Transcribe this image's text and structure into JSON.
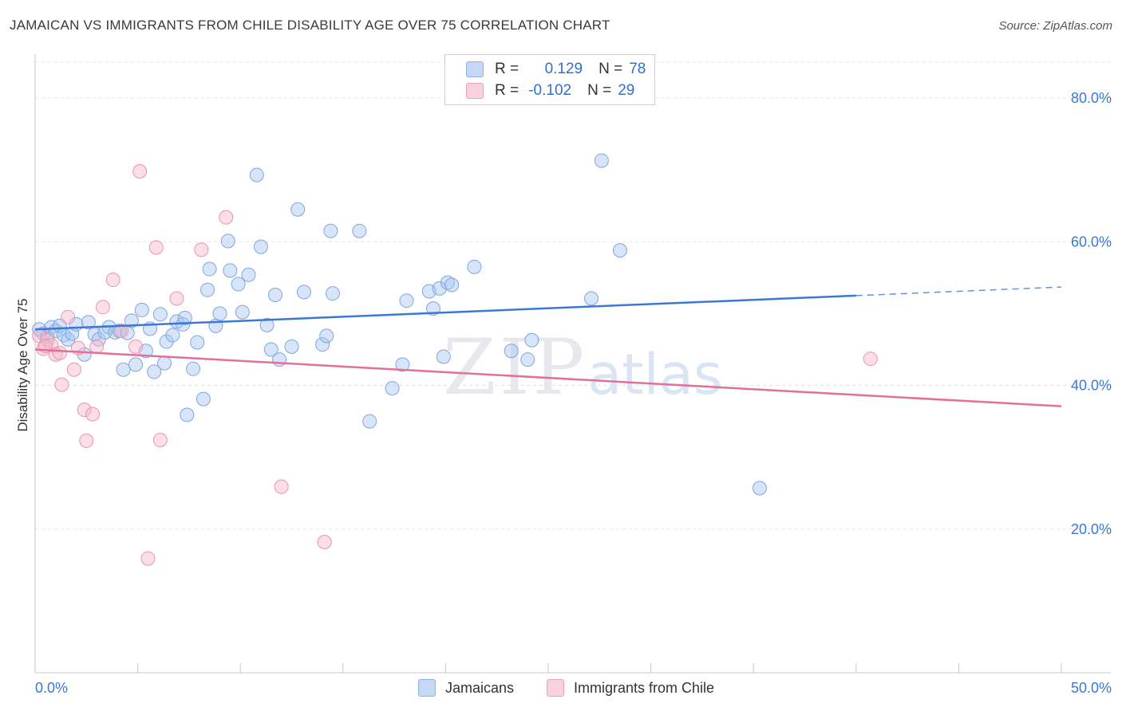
{
  "header": {
    "title": "JAMAICAN VS IMMIGRANTS FROM CHILE DISABILITY AGE OVER 75 CORRELATION CHART",
    "source": "Source: ZipAtlas.com"
  },
  "watermark": {
    "zip": "ZIP",
    "atlas": "atlas"
  },
  "legend": {
    "rows": [
      {
        "r_label": "R =",
        "r_value": "0.129",
        "n_label": "N =",
        "n_value": "78",
        "color": "#a9c6ef"
      },
      {
        "r_label": "R =",
        "r_value": "-0.102",
        "n_label": "N =",
        "n_value": "29",
        "color": "#f5b8cb"
      }
    ]
  },
  "bottom_legend": {
    "jamaicans": "Jamaicans",
    "chile": "Immigrants from Chile"
  },
  "chart_data": {
    "type": "scatter",
    "title": "JAMAICAN VS IMMIGRANTS FROM CHILE DISABILITY AGE OVER 75 CORRELATION CHART",
    "xlabel": "",
    "ylabel": "Disability Age Over 75",
    "xlim": [
      0,
      50
    ],
    "ylim": [
      0,
      85
    ],
    "x_tick_labels": [
      "0.0%",
      "50.0%"
    ],
    "y_ticks": [
      20,
      40,
      60,
      80
    ],
    "y_tick_labels": [
      "20.0%",
      "40.0%",
      "60.0%",
      "80.0%"
    ],
    "grid": true,
    "legend_position": "top-center",
    "colors": {
      "jamaicans": "#3a78d4",
      "chile": "#e46f97",
      "tick_label": "#3a78d4"
    },
    "series": [
      {
        "name": "Jamaicans",
        "trend": {
          "x0": 0,
          "y0": 47.8,
          "x1": 40,
          "y1": 52.5,
          "dashed_to_x": 50,
          "dashed_to_y": 53.7
        },
        "points": [
          [
            0.2,
            47.8
          ],
          [
            0.4,
            47.2
          ],
          [
            0.6,
            46.8
          ],
          [
            0.8,
            48.1
          ],
          [
            1.0,
            47.6
          ],
          [
            1.2,
            48.3
          ],
          [
            1.4,
            47.0
          ],
          [
            1.6,
            46.4
          ],
          [
            1.8,
            47.2
          ],
          [
            2.0,
            48.5
          ],
          [
            2.4,
            44.3
          ],
          [
            2.6,
            48.8
          ],
          [
            2.9,
            47.1
          ],
          [
            3.1,
            46.4
          ],
          [
            3.4,
            47.4
          ],
          [
            3.6,
            48.1
          ],
          [
            3.9,
            47.4
          ],
          [
            4.1,
            47.6
          ],
          [
            4.3,
            42.2
          ],
          [
            4.5,
            47.3
          ],
          [
            4.7,
            49.0
          ],
          [
            4.9,
            42.9
          ],
          [
            5.2,
            50.5
          ],
          [
            5.4,
            44.8
          ],
          [
            5.6,
            47.9
          ],
          [
            5.8,
            41.9
          ],
          [
            6.1,
            49.9
          ],
          [
            6.3,
            43.1
          ],
          [
            6.4,
            46.1
          ],
          [
            6.7,
            47.0
          ],
          [
            6.9,
            48.9
          ],
          [
            7.2,
            48.5
          ],
          [
            7.3,
            49.4
          ],
          [
            7.7,
            42.3
          ],
          [
            7.9,
            46.0
          ],
          [
            8.2,
            38.1
          ],
          [
            8.4,
            53.3
          ],
          [
            8.5,
            56.2
          ],
          [
            8.8,
            48.3
          ],
          [
            9.0,
            50.0
          ],
          [
            9.4,
            60.1
          ],
          [
            9.5,
            56.0
          ],
          [
            9.9,
            54.1
          ],
          [
            10.1,
            50.2
          ],
          [
            10.4,
            55.4
          ],
          [
            10.8,
            69.3
          ],
          [
            11.0,
            59.3
          ],
          [
            11.3,
            48.4
          ],
          [
            11.5,
            45.0
          ],
          [
            11.7,
            52.6
          ],
          [
            11.9,
            43.6
          ],
          [
            12.5,
            45.4
          ],
          [
            12.8,
            64.5
          ],
          [
            13.1,
            53.0
          ],
          [
            14.0,
            45.7
          ],
          [
            14.2,
            46.9
          ],
          [
            14.4,
            61.5
          ],
          [
            14.5,
            52.8
          ],
          [
            15.8,
            61.5
          ],
          [
            16.3,
            35.0
          ],
          [
            17.4,
            39.6
          ],
          [
            17.9,
            42.9
          ],
          [
            18.1,
            51.8
          ],
          [
            19.2,
            53.1
          ],
          [
            19.4,
            50.7
          ],
          [
            19.7,
            53.5
          ],
          [
            19.9,
            44.0
          ],
          [
            20.1,
            54.3
          ],
          [
            20.3,
            54.0
          ],
          [
            21.4,
            56.5
          ],
          [
            23.2,
            44.8
          ],
          [
            24.0,
            43.6
          ],
          [
            24.2,
            46.3
          ],
          [
            27.1,
            52.1
          ],
          [
            27.6,
            71.3
          ],
          [
            28.5,
            58.8
          ],
          [
            35.3,
            25.7
          ],
          [
            7.4,
            35.9
          ]
        ]
      },
      {
        "name": "Immigrants from Chile",
        "trend": {
          "x0": 0,
          "y0": 45.0,
          "x1": 50,
          "y1": 37.1
        },
        "points": [
          [
            0.2,
            46.9
          ],
          [
            0.4,
            45.1
          ],
          [
            0.6,
            46.3
          ],
          [
            0.8,
            45.6
          ],
          [
            1.0,
            44.3
          ],
          [
            1.3,
            40.1
          ],
          [
            1.6,
            49.5
          ],
          [
            1.9,
            42.2
          ],
          [
            2.1,
            45.2
          ],
          [
            2.4,
            36.6
          ],
          [
            2.5,
            32.3
          ],
          [
            2.8,
            36.0
          ],
          [
            3.0,
            45.4
          ],
          [
            3.3,
            50.9
          ],
          [
            3.8,
            54.7
          ],
          [
            4.2,
            47.6
          ],
          [
            4.9,
            45.4
          ],
          [
            5.1,
            69.8
          ],
          [
            5.5,
            15.9
          ],
          [
            5.9,
            59.2
          ],
          [
            6.1,
            32.4
          ],
          [
            6.9,
            52.1
          ],
          [
            8.1,
            58.9
          ],
          [
            9.3,
            63.4
          ],
          [
            12.0,
            25.9
          ],
          [
            14.1,
            18.2
          ],
          [
            40.7,
            43.7
          ],
          [
            0.5,
            45.5
          ],
          [
            1.2,
            44.5
          ]
        ]
      }
    ]
  }
}
